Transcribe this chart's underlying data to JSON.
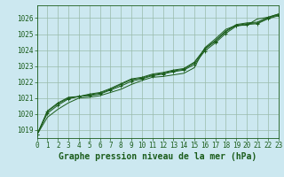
{
  "title": "Graphe pression niveau de la mer (hPa)",
  "bg_color": "#cce8f0",
  "grid_color": "#99bbaa",
  "line_color": "#1a5c1a",
  "xlim": [
    0,
    23
  ],
  "ylim": [
    1018.5,
    1026.8
  ],
  "yticks": [
    1019,
    1020,
    1021,
    1022,
    1023,
    1024,
    1025,
    1026
  ],
  "xticks": [
    0,
    1,
    2,
    3,
    4,
    5,
    6,
    7,
    8,
    9,
    10,
    11,
    12,
    13,
    14,
    15,
    16,
    17,
    18,
    19,
    20,
    21,
    22,
    23
  ],
  "line1": [
    1018.7,
    1019.8,
    1020.3,
    1020.7,
    1021.0,
    1021.05,
    1021.15,
    1021.35,
    1021.55,
    1021.85,
    1022.1,
    1022.3,
    1022.35,
    1022.45,
    1022.55,
    1022.9,
    1024.15,
    1024.7,
    1025.3,
    1025.55,
    1025.55,
    1025.95,
    1026.05,
    1026.25
  ],
  "line2": [
    1018.7,
    1020.05,
    1020.55,
    1020.95,
    1021.1,
    1021.15,
    1021.25,
    1021.5,
    1021.75,
    1022.05,
    1022.2,
    1022.4,
    1022.5,
    1022.65,
    1022.75,
    1023.1,
    1023.95,
    1024.45,
    1025.05,
    1025.5,
    1025.6,
    1025.65,
    1025.95,
    1026.15
  ],
  "line3": [
    1018.7,
    1020.15,
    1020.65,
    1021.0,
    1021.1,
    1021.2,
    1021.3,
    1021.55,
    1021.85,
    1022.15,
    1022.25,
    1022.45,
    1022.55,
    1022.7,
    1022.8,
    1023.2,
    1024.05,
    1024.55,
    1025.15,
    1025.55,
    1025.65,
    1025.7,
    1026.0,
    1026.2
  ],
  "line4": [
    1018.7,
    1020.2,
    1020.7,
    1021.05,
    1021.1,
    1021.25,
    1021.35,
    1021.6,
    1021.9,
    1022.2,
    1022.3,
    1022.5,
    1022.6,
    1022.75,
    1022.85,
    1023.25,
    1024.1,
    1024.6,
    1025.2,
    1025.6,
    1025.7,
    1025.75,
    1026.05,
    1026.25
  ],
  "title_fontsize": 7,
  "tick_fontsize": 5.5
}
